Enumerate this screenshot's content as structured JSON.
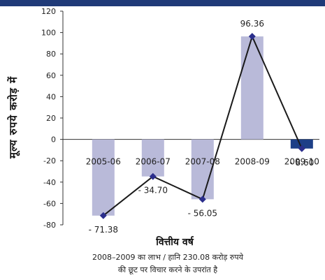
{
  "chart_data": {
    "type": "bar",
    "categories": [
      "2005-06",
      "2006-07",
      "2007-08",
      "2008-09",
      "2009-10"
    ],
    "values": [
      -71.38,
      -34.7,
      -56.05,
      96.36,
      -8.6
    ],
    "value_labels": [
      "- 71.38",
      "- 34.70",
      "- 56.05",
      "96.36",
      "- 8.60"
    ],
    "line_overlay": true,
    "ylim": [
      -80,
      120
    ],
    "yticks": [
      -80,
      -60,
      -40,
      -20,
      0,
      20,
      40,
      60,
      80,
      100,
      120
    ],
    "ylabel": "मूल्य रुपये करोड़ में",
    "xlabel": "वित्तीय वर्ष",
    "title": "",
    "grid": false,
    "colors": {
      "bar": "#b9bad9",
      "bar_last": "#1d3f87",
      "line": "#1a1a1a",
      "marker": "#2b2e8c"
    }
  },
  "caption": {
    "line1": "2008–2009 का लाभ / हानि 230.08 करोड़ रुपये",
    "line2": "की छूट पर विचार करने के उपरांत है"
  }
}
